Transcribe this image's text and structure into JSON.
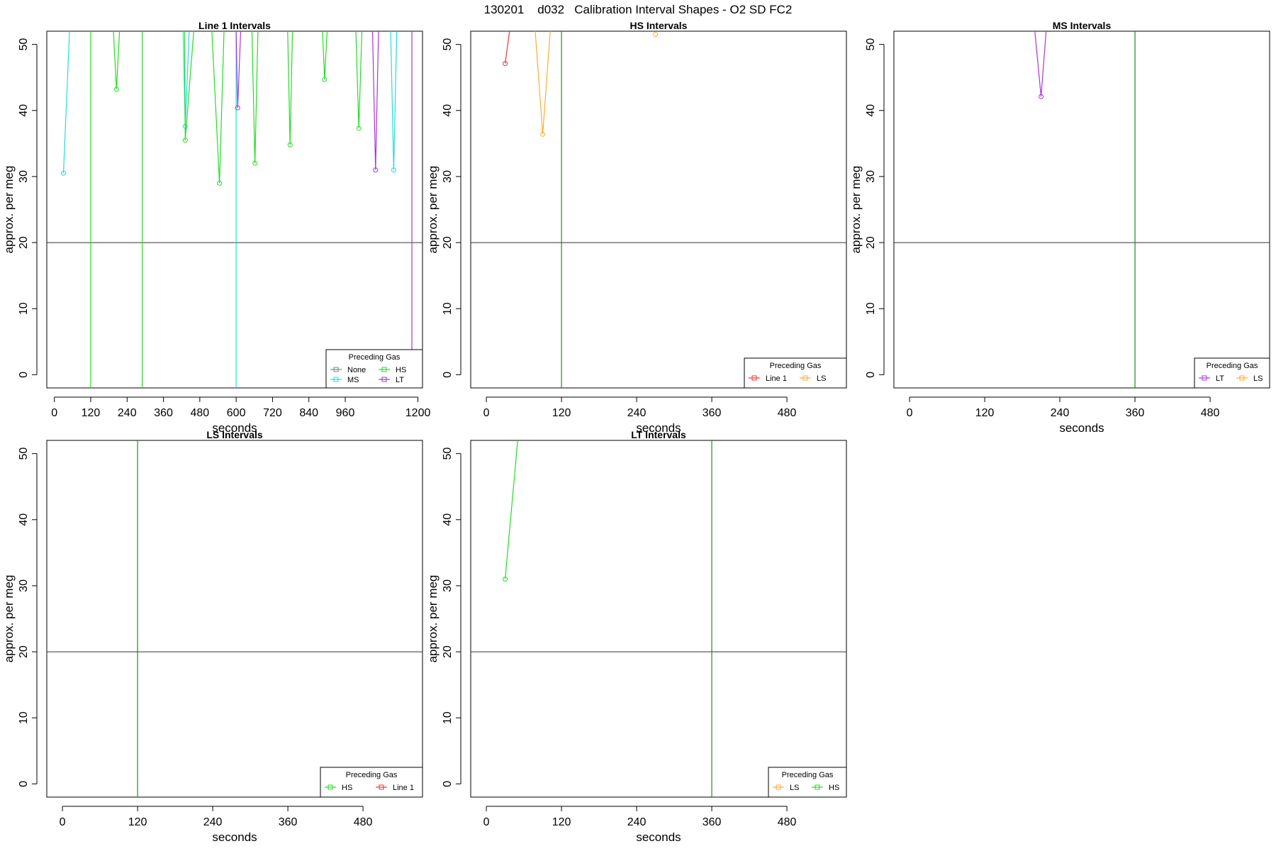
{
  "figure": {
    "title": "130201    d032   Calibration Interval Shapes - O2 SD FC2",
    "legend_title": "Preceding Gas",
    "colors": {
      "None": "#808080",
      "HS": "#22dd22",
      "MS": "#22dddd",
      "LT": "#aa33dd",
      "Line 1": "#ee3333",
      "LS": "#ffaa33",
      "vline": "#228822",
      "hline": "#333333"
    }
  },
  "chart_data": [
    {
      "type": "line",
      "title": "Line 1 Intervals",
      "xlabel": "seconds",
      "ylabel": "approx. per meg",
      "xlim": [
        -25,
        1215
      ],
      "ylim": [
        -2,
        52
      ],
      "xticks": [
        0,
        120,
        240,
        360,
        480,
        600,
        720,
        840,
        960,
        1200
      ],
      "yticks": [
        0,
        10,
        20,
        30,
        40,
        50
      ],
      "hline": 20,
      "vlines": [
        {
          "x": 120,
          "color": "#22dd22"
        },
        {
          "x": 290,
          "color": "#22dd22"
        },
        {
          "x": 600,
          "color": "#22dddd"
        },
        {
          "x": 1180,
          "color": "#aa33dd"
        }
      ],
      "legend": [
        "None",
        "HS",
        "MS",
        "LT"
      ],
      "series": [
        {
          "name": "MS",
          "values": [
            [
              30,
              30.5
            ],
            [
              50,
              52
            ]
          ]
        },
        {
          "name": "HS",
          "values": [
            [
              195,
              52
            ],
            [
              205,
              43.2
            ],
            [
              215,
              52
            ]
          ]
        },
        {
          "name": "MS",
          "values": [
            [
              425,
              52
            ],
            [
              432,
              37.6
            ],
            [
              445,
              52
            ]
          ]
        },
        {
          "name": "HS",
          "values": [
            [
              430,
              52
            ],
            [
              432,
              35.5
            ],
            [
              460,
              52
            ]
          ]
        },
        {
          "name": "HS",
          "values": [
            [
              520,
              52
            ],
            [
              545,
              29
            ],
            [
              560,
              52
            ]
          ]
        },
        {
          "name": "LT",
          "values": [
            [
              600,
              52
            ],
            [
              605,
              40.4
            ],
            [
              615,
              52
            ]
          ]
        },
        {
          "name": "HS",
          "values": [
            [
              652,
              52
            ],
            [
              662,
              32
            ],
            [
              672,
              52
            ]
          ]
        },
        {
          "name": "HS",
          "values": [
            [
              770,
              52
            ],
            [
              778,
              34.8
            ],
            [
              786,
              52
            ]
          ]
        },
        {
          "name": "HS",
          "values": [
            [
              885,
              52
            ],
            [
              892,
              44.7
            ],
            [
              900,
              52
            ]
          ]
        },
        {
          "name": "HS",
          "values": [
            [
              995,
              52
            ],
            [
              1005,
              37.3
            ],
            [
              1015,
              52
            ]
          ]
        },
        {
          "name": "LT",
          "values": [
            [
              1050,
              52
            ],
            [
              1060,
              31
            ],
            [
              1070,
              52
            ]
          ]
        },
        {
          "name": "MS",
          "values": [
            [
              1110,
              52
            ],
            [
              1120,
              31
            ],
            [
              1130,
              52
            ]
          ]
        }
      ]
    },
    {
      "type": "line",
      "title": "HS Intervals",
      "xlabel": "seconds",
      "ylabel": "approx. per meg",
      "xlim": [
        -25,
        575
      ],
      "ylim": [
        -2,
        52
      ],
      "xticks": [
        0,
        120,
        240,
        360,
        480
      ],
      "yticks": [
        0,
        10,
        20,
        30,
        40,
        50
      ],
      "hline": 20,
      "vlines": [
        {
          "x": 120,
          "color": "#228822"
        }
      ],
      "legend": [
        "Line 1",
        "LS"
      ],
      "series": [
        {
          "name": "Line 1",
          "values": [
            [
              30,
              47.1
            ],
            [
              37,
              52
            ]
          ]
        },
        {
          "name": "LS",
          "values": [
            [
              78,
              52
            ],
            [
              90,
              36.4
            ],
            [
              102,
              52
            ]
          ]
        },
        {
          "name": "LS",
          "values": [
            [
              270,
              51.5
            ]
          ]
        }
      ]
    },
    {
      "type": "line",
      "title": "MS Intervals",
      "xlabel": "seconds",
      "ylabel": "approx. per meg",
      "xlim": [
        -25,
        575
      ],
      "ylim": [
        -2,
        52
      ],
      "xticks": [
        0,
        120,
        240,
        360,
        480
      ],
      "yticks": [
        0,
        10,
        20,
        30,
        40,
        50
      ],
      "hline": 20,
      "vlines": [
        {
          "x": 360,
          "color": "#228822"
        }
      ],
      "legend": [
        "LT",
        "LS"
      ],
      "series": [
        {
          "name": "LT",
          "values": [
            [
              200,
              52
            ],
            [
              210,
              42.1
            ],
            [
              218,
              52
            ]
          ]
        }
      ]
    },
    {
      "type": "line",
      "title": "LS Intervals",
      "xlabel": "seconds",
      "ylabel": "approx. per meg",
      "xlim": [
        -25,
        575
      ],
      "ylim": [
        -2,
        52
      ],
      "xticks": [
        0,
        120,
        240,
        360,
        480
      ],
      "yticks": [
        0,
        10,
        20,
        30,
        40,
        50
      ],
      "hline": 20,
      "vlines": [
        {
          "x": 120,
          "color": "#228822"
        }
      ],
      "legend": [
        "HS",
        "Line 1"
      ],
      "series": []
    },
    {
      "type": "line",
      "title": "LT Intervals",
      "xlabel": "seconds",
      "ylabel": "approx. per meg",
      "xlim": [
        -25,
        575
      ],
      "ylim": [
        -2,
        52
      ],
      "xticks": [
        0,
        120,
        240,
        360,
        480
      ],
      "yticks": [
        0,
        10,
        20,
        30,
        40,
        50
      ],
      "hline": 20,
      "vlines": [
        {
          "x": 360,
          "color": "#228822"
        }
      ],
      "legend": [
        "LS",
        "HS"
      ],
      "series": [
        {
          "name": "HS",
          "values": [
            [
              30,
              31
            ],
            [
              50,
              52
            ]
          ]
        }
      ]
    }
  ]
}
